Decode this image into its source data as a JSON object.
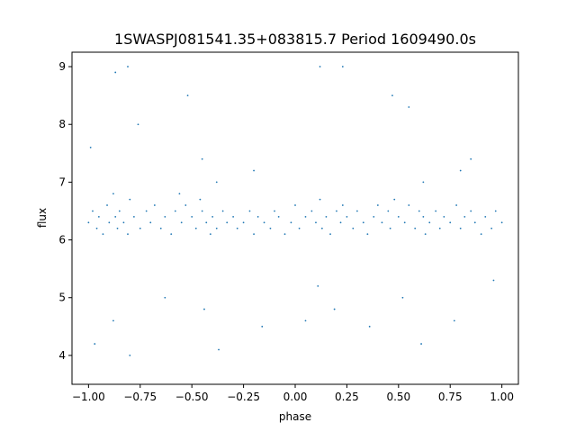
{
  "chart_data": {
    "type": "scatter",
    "title": "1SWASPJ081541.35+083815.7 Period 1609490.0s",
    "xlabel": "phase",
    "ylabel": "flux",
    "xlim": [
      -1.08,
      1.08
    ],
    "ylim": [
      3.5,
      9.25
    ],
    "xticks": [
      -1.0,
      -0.75,
      -0.5,
      -0.25,
      0.0,
      0.25,
      0.5,
      0.75,
      1.0
    ],
    "xtick_labels": [
      "−1.00",
      "−0.75",
      "−0.50",
      "−0.25",
      "0.00",
      "0.25",
      "0.50",
      "0.75",
      "1.00"
    ],
    "yticks": [
      4,
      5,
      6,
      7,
      8,
      9
    ],
    "ytick_labels": [
      "4",
      "5",
      "6",
      "7",
      "8",
      "9"
    ],
    "grid": false,
    "legend": "none",
    "point_color": "#1f77b4",
    "series": [
      {
        "x": [
          -1.0,
          -0.98,
          -0.96,
          -0.95,
          -0.93,
          -0.91,
          -0.9,
          -0.88,
          -0.87,
          -0.86,
          -0.85,
          -0.83,
          -0.81,
          -0.8,
          -0.78,
          -0.75,
          -0.72,
          -0.7,
          -0.68,
          -0.65,
          -0.63,
          -0.6,
          -0.58,
          -0.56,
          -0.55,
          -0.53,
          -0.5,
          -0.48,
          -0.46,
          -0.45,
          -0.43,
          -0.41,
          -0.4,
          -0.38,
          -0.35,
          -0.33,
          -0.3,
          -0.28,
          -0.25,
          -0.22,
          -0.2,
          -0.18,
          -0.15,
          -0.12,
          -0.1,
          -0.08,
          -0.05,
          -0.02,
          0.0,
          0.02,
          0.05,
          0.08,
          0.1,
          0.12,
          0.13,
          0.15,
          0.17,
          0.2,
          0.22,
          0.23,
          0.25,
          0.28,
          0.3,
          0.33,
          0.35,
          0.38,
          0.4,
          0.42,
          0.45,
          0.46,
          0.48,
          0.5,
          0.53,
          0.55,
          0.58,
          0.6,
          0.62,
          0.63,
          0.65,
          0.68,
          0.7,
          0.72,
          0.75,
          0.78,
          0.8,
          0.82,
          0.85,
          0.87,
          0.9,
          0.92,
          0.95,
          0.97,
          1.0,
          -0.99,
          -0.87,
          -0.81,
          -0.76,
          -0.52,
          -0.45,
          -0.38,
          -0.2,
          0.12,
          0.23,
          0.47,
          0.55,
          0.62,
          0.8,
          0.85,
          -0.97,
          -0.88,
          -0.8,
          -0.63,
          -0.44,
          -0.37,
          -0.16,
          0.05,
          0.11,
          0.19,
          0.36,
          0.52,
          0.61,
          0.77,
          0.96
        ],
        "y": [
          6.3,
          6.5,
          6.2,
          6.4,
          6.1,
          6.6,
          6.3,
          6.8,
          6.4,
          6.2,
          6.5,
          6.3,
          6.1,
          6.7,
          6.4,
          6.2,
          6.5,
          6.3,
          6.6,
          6.2,
          6.4,
          6.1,
          6.5,
          6.8,
          6.3,
          6.6,
          6.4,
          6.2,
          6.7,
          6.5,
          6.3,
          6.1,
          6.4,
          6.2,
          6.5,
          6.3,
          6.4,
          6.2,
          6.3,
          6.5,
          6.1,
          6.4,
          6.3,
          6.2,
          6.5,
          6.4,
          6.1,
          6.3,
          6.6,
          6.2,
          6.4,
          6.5,
          6.3,
          6.7,
          6.2,
          6.4,
          6.1,
          6.5,
          6.3,
          6.6,
          6.4,
          6.2,
          6.5,
          6.3,
          6.1,
          6.4,
          6.6,
          6.3,
          6.5,
          6.2,
          6.7,
          6.4,
          6.3,
          6.6,
          6.2,
          6.5,
          6.4,
          6.1,
          6.3,
          6.5,
          6.2,
          6.4,
          6.3,
          6.6,
          6.2,
          6.4,
          6.5,
          6.3,
          6.1,
          6.4,
          6.2,
          6.5,
          6.3,
          7.6,
          8.9,
          9.0,
          8.0,
          8.5,
          7.4,
          7.0,
          7.2,
          9.0,
          9.0,
          8.5,
          8.3,
          7.0,
          7.2,
          7.4,
          4.2,
          4.6,
          4.0,
          5.0,
          4.8,
          4.1,
          4.5,
          4.6,
          5.2,
          4.8,
          4.5,
          5.0,
          4.2,
          4.6,
          5.3
        ]
      }
    ]
  }
}
